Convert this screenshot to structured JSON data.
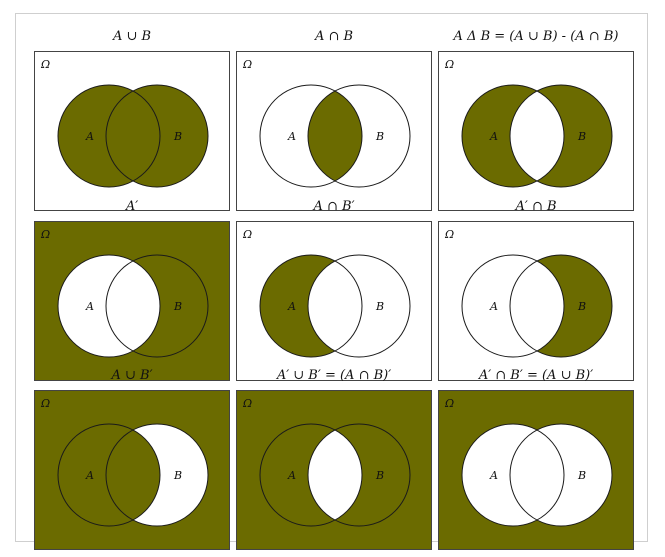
{
  "colors": {
    "fill": "#6b6b00",
    "empty": "#ffffff",
    "stroke": "#1a1a1a",
    "border": "#444444"
  },
  "universe_label": "Ω",
  "set_a_label": "A",
  "set_b_label": "B",
  "diagrams": [
    {
      "title": "A ∪ B",
      "regions": {
        "outside": false,
        "a_only": true,
        "intersection": true,
        "b_only": true
      }
    },
    {
      "title": "A ∩ B",
      "regions": {
        "outside": false,
        "a_only": false,
        "intersection": true,
        "b_only": false
      }
    },
    {
      "title": "A Δ B = (A ∪ B) - (A ∩ B)",
      "regions": {
        "outside": false,
        "a_only": true,
        "intersection": false,
        "b_only": true
      }
    },
    {
      "title": "A′",
      "regions": {
        "outside": true,
        "a_only": false,
        "intersection": false,
        "b_only": true
      }
    },
    {
      "title": "A ∩ B′",
      "regions": {
        "outside": false,
        "a_only": true,
        "intersection": false,
        "b_only": false
      }
    },
    {
      "title": "A′ ∩ B",
      "regions": {
        "outside": false,
        "a_only": false,
        "intersection": false,
        "b_only": true
      }
    },
    {
      "title": "A ∪ B′",
      "regions": {
        "outside": true,
        "a_only": true,
        "intersection": true,
        "b_only": false
      }
    },
    {
      "title": "A′ ∪ B′ = (A ∩ B)′",
      "regions": {
        "outside": true,
        "a_only": true,
        "intersection": false,
        "b_only": true
      }
    },
    {
      "title": "A′ ∩ B′ = (A ∪ B)′",
      "regions": {
        "outside": true,
        "a_only": false,
        "intersection": false,
        "b_only": false
      }
    }
  ]
}
